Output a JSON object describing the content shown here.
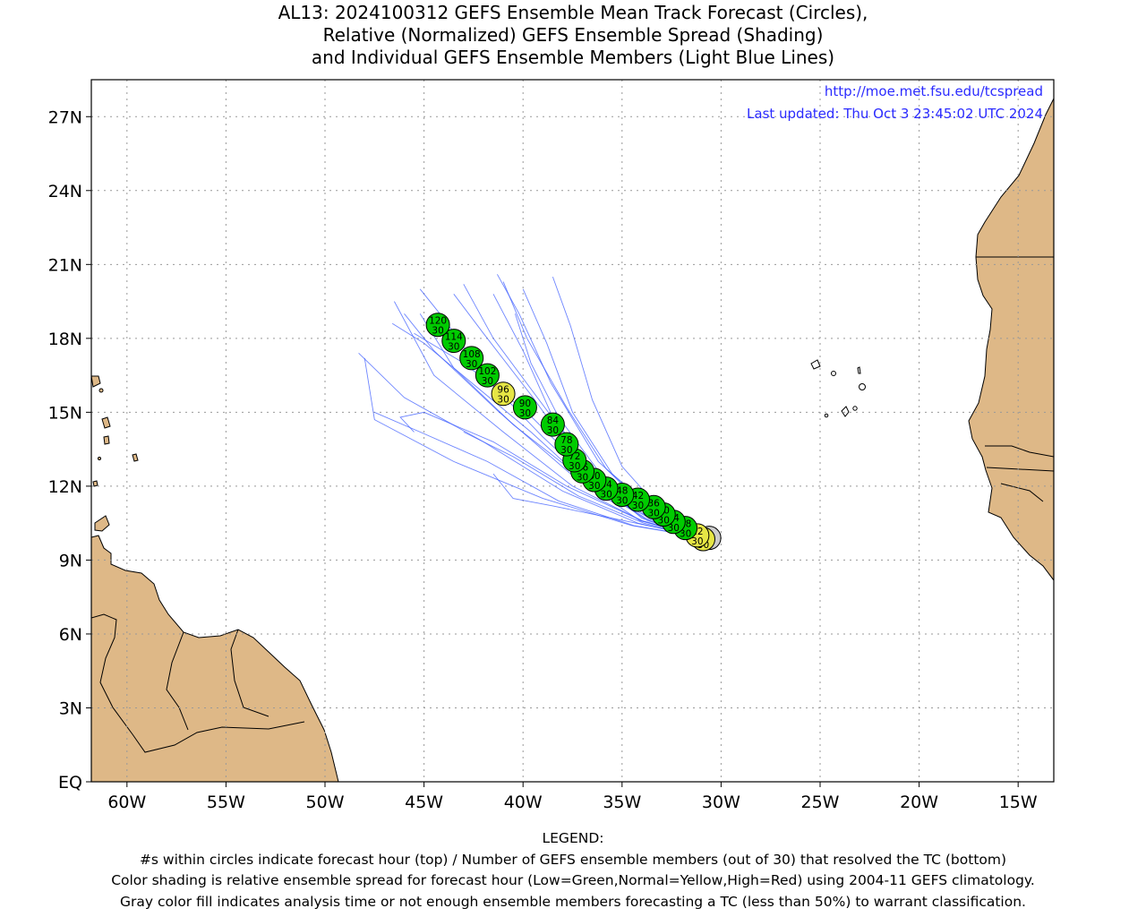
{
  "title": {
    "line1": "AL13: 2024100312 GEFS Ensemble Mean Track Forecast (Circles),",
    "line2": "Relative (Normalized) GEFS Ensemble Spread (Shading)",
    "line3": "and Individual GEFS Ensemble Members (Light Blue Lines)"
  },
  "credit": {
    "url": "http://moe.met.fsu.edu/tcspread",
    "updated": "Last updated: Thu Oct 3 23:45:02 UTC 2024"
  },
  "legend": {
    "heading": "LEGEND:",
    "line1": "#s within circles indicate forecast hour (top) / Number of GEFS ensemble members (out of 30) that resolved the TC (bottom)",
    "line2": "Color shading is relative ensemble spread for forecast hour (Low=Green,Normal=Yellow,High=Red) using 2004-11 GEFS climatology.",
    "line3": "Gray color fill indicates analysis time or not enough ensemble members forecasting a TC (less than 50%) to warrant classification."
  },
  "colors": {
    "land": "#deb887",
    "green": "#00cc00",
    "yellow": "#e6e645",
    "gray": "#cccccc",
    "member_line": "#3c5cff",
    "credit_text": "#2b2bff"
  },
  "chart_data": {
    "type": "map-track",
    "projection": "longitude-latitude",
    "xlim": [
      -61.8,
      -13.2
    ],
    "ylim": [
      0,
      28.5
    ],
    "x_ticks": [
      {
        "lon": -60,
        "label": "60W"
      },
      {
        "lon": -55,
        "label": "55W"
      },
      {
        "lon": -50,
        "label": "50W"
      },
      {
        "lon": -45,
        "label": "45W"
      },
      {
        "lon": -40,
        "label": "40W"
      },
      {
        "lon": -35,
        "label": "35W"
      },
      {
        "lon": -30,
        "label": "30W"
      },
      {
        "lon": -25,
        "label": "25W"
      },
      {
        "lon": -20,
        "label": "20W"
      },
      {
        "lon": -15,
        "label": "15W"
      }
    ],
    "y_ticks": [
      {
        "lat": 0,
        "label": "EQ"
      },
      {
        "lat": 3,
        "label": "3N"
      },
      {
        "lat": 6,
        "label": "6N"
      },
      {
        "lat": 9,
        "label": "9N"
      },
      {
        "lat": 12,
        "label": "12N"
      },
      {
        "lat": 15,
        "label": "15N"
      },
      {
        "lat": 18,
        "label": "18N"
      },
      {
        "lat": 21,
        "label": "21N"
      },
      {
        "lat": 24,
        "label": "24N"
      },
      {
        "lat": 27,
        "label": "27N"
      }
    ],
    "grid": true,
    "mean_track": [
      {
        "hour": "0",
        "members": "",
        "lon": -30.6,
        "lat": 9.9,
        "spread": "gray"
      },
      {
        "hour": "6",
        "members": "30",
        "lon": -30.9,
        "lat": 9.85,
        "spread": "yellow"
      },
      {
        "hour": "12",
        "members": "30",
        "lon": -31.2,
        "lat": 10.0,
        "spread": "yellow"
      },
      {
        "hour": "18",
        "members": "30",
        "lon": -31.8,
        "lat": 10.3,
        "spread": "green"
      },
      {
        "hour": "24",
        "members": "30",
        "lon": -32.4,
        "lat": 10.55,
        "spread": "green"
      },
      {
        "hour": "30",
        "members": "30",
        "lon": -32.9,
        "lat": 10.85,
        "spread": "green"
      },
      {
        "hour": "36",
        "members": "30",
        "lon": -33.4,
        "lat": 11.15,
        "spread": "green"
      },
      {
        "hour": "42",
        "members": "30",
        "lon": -34.2,
        "lat": 11.45,
        "spread": "green"
      },
      {
        "hour": "48",
        "members": "30",
        "lon": -35.0,
        "lat": 11.65,
        "spread": "green"
      },
      {
        "hour": "54",
        "members": "30",
        "lon": -35.8,
        "lat": 11.9,
        "spread": "green"
      },
      {
        "hour": "60",
        "members": "30",
        "lon": -36.4,
        "lat": 12.25,
        "spread": "green"
      },
      {
        "hour": "66",
        "members": "30",
        "lon": -37.0,
        "lat": 12.6,
        "spread": "green"
      },
      {
        "hour": "72",
        "members": "30",
        "lon": -37.4,
        "lat": 13.05,
        "spread": "green"
      },
      {
        "hour": "78",
        "members": "30",
        "lon": -37.8,
        "lat": 13.7,
        "spread": "green"
      },
      {
        "hour": "84",
        "members": "30",
        "lon": -38.5,
        "lat": 14.5,
        "spread": "green"
      },
      {
        "hour": "90",
        "members": "30",
        "lon": -39.9,
        "lat": 15.2,
        "spread": "green"
      },
      {
        "hour": "96",
        "members": "30",
        "lon": -41.0,
        "lat": 15.75,
        "spread": "yellow"
      },
      {
        "hour": "102",
        "members": "30",
        "lon": -41.8,
        "lat": 16.5,
        "spread": "green"
      },
      {
        "hour": "108",
        "members": "30",
        "lon": -42.6,
        "lat": 17.2,
        "spread": "green"
      },
      {
        "hour": "114",
        "members": "30",
        "lon": -43.5,
        "lat": 17.9,
        "spread": "green"
      },
      {
        "hour": "120",
        "members": "30",
        "lon": -44.3,
        "lat": 18.55,
        "spread": "green"
      }
    ],
    "member_tracks": [
      [
        [
          -30.8,
          9.9
        ],
        [
          -34.0,
          10.6
        ],
        [
          -37.5,
          12.0
        ],
        [
          -41.0,
          14.2
        ],
        [
          -44.5,
          16.5
        ],
        [
          -46.5,
          19.5
        ]
      ],
      [
        [
          -30.8,
          9.9
        ],
        [
          -33.8,
          10.7
        ],
        [
          -37.0,
          12.3
        ],
        [
          -40.5,
          14.5
        ],
        [
          -43.5,
          16.8
        ],
        [
          -45.2,
          19.0
        ]
      ],
      [
        [
          -30.8,
          9.9
        ],
        [
          -34.2,
          10.5
        ],
        [
          -38.0,
          11.8
        ],
        [
          -42.0,
          13.8
        ],
        [
          -46.0,
          15.6
        ],
        [
          -48.3,
          17.4
        ]
      ],
      [
        [
          -30.8,
          9.9
        ],
        [
          -34.5,
          10.4
        ],
        [
          -39.0,
          11.5
        ],
        [
          -43.5,
          13.0
        ],
        [
          -47.5,
          14.7
        ],
        [
          -48.0,
          17.2
        ]
      ],
      [
        [
          -30.8,
          9.9
        ],
        [
          -33.5,
          10.8
        ],
        [
          -36.0,
          12.2
        ],
        [
          -38.5,
          14.8
        ],
        [
          -40.0,
          17.5
        ],
        [
          -41.5,
          19.8
        ]
      ],
      [
        [
          -30.8,
          9.9
        ],
        [
          -33.6,
          10.9
        ],
        [
          -36.5,
          12.6
        ],
        [
          -39.0,
          15.3
        ],
        [
          -41.5,
          18.0
        ],
        [
          -43.0,
          20.2
        ]
      ],
      [
        [
          -30.8,
          9.9
        ],
        [
          -33.2,
          10.9
        ],
        [
          -35.5,
          12.5
        ],
        [
          -37.5,
          15.0
        ],
        [
          -38.8,
          17.8
        ],
        [
          -40.0,
          20.0
        ]
      ],
      [
        [
          -30.8,
          9.9
        ],
        [
          -33.0,
          11.0
        ],
        [
          -35.0,
          12.8
        ],
        [
          -36.5,
          15.5
        ],
        [
          -37.6,
          18.5
        ],
        [
          -38.5,
          20.5
        ]
      ],
      [
        [
          -30.8,
          9.9
        ],
        [
          -34.0,
          10.6
        ],
        [
          -37.8,
          12.0
        ],
        [
          -41.5,
          13.8
        ],
        [
          -45.0,
          15.0
        ],
        [
          -46.2,
          14.8
        ],
        [
          -45.5,
          14.2
        ]
      ],
      [
        [
          -30.8,
          9.9
        ],
        [
          -34.3,
          10.5
        ],
        [
          -38.5,
          11.2
        ],
        [
          -40.5,
          11.5
        ],
        [
          -41.5,
          12.5
        ]
      ],
      [
        [
          -30.8,
          9.9
        ],
        [
          -33.7,
          10.6
        ],
        [
          -36.2,
          11.9
        ],
        [
          -39.0,
          14.0
        ],
        [
          -42.0,
          16.5
        ],
        [
          -44.0,
          18.8
        ],
        [
          -45.2,
          20.0
        ]
      ],
      [
        [
          -30.8,
          9.9
        ],
        [
          -34.0,
          10.7
        ],
        [
          -37.0,
          12.8
        ],
        [
          -39.5,
          15.6
        ],
        [
          -42.0,
          18.2
        ],
        [
          -43.5,
          19.8
        ]
      ],
      [
        [
          -30.8,
          9.9
        ],
        [
          -33.4,
          10.8
        ],
        [
          -35.8,
          12.7
        ],
        [
          -37.8,
          15.2
        ],
        [
          -39.8,
          18.0
        ],
        [
          -41.0,
          20.3
        ]
      ],
      [
        [
          -30.8,
          9.9
        ],
        [
          -34.1,
          10.6
        ],
        [
          -37.6,
          12.5
        ],
        [
          -41.2,
          15.0
        ],
        [
          -44.5,
          17.5
        ],
        [
          -46.0,
          19.0
        ]
      ],
      [
        [
          -30.8,
          9.9
        ],
        [
          -33.9,
          10.5
        ],
        [
          -37.2,
          11.6
        ],
        [
          -40.5,
          13.2
        ],
        [
          -43.0,
          14.2
        ]
      ],
      [
        [
          -30.8,
          9.9
        ],
        [
          -33.6,
          10.7
        ],
        [
          -36.6,
          12.0
        ],
        [
          -39.6,
          14.2
        ],
        [
          -42.6,
          16.2
        ],
        [
          -45.0,
          17.8
        ],
        [
          -46.6,
          18.6
        ]
      ],
      [
        [
          -30.8,
          9.9
        ],
        [
          -33.3,
          10.9
        ],
        [
          -36.2,
          13.0
        ],
        [
          -38.6,
          16.2
        ],
        [
          -40.2,
          19.0
        ],
        [
          -41.3,
          20.6
        ]
      ],
      [
        [
          -30.8,
          9.9
        ],
        [
          -33.8,
          10.8
        ],
        [
          -36.8,
          12.6
        ],
        [
          -39.8,
          15.0
        ],
        [
          -43.0,
          17.0
        ],
        [
          -45.5,
          18.2
        ]
      ],
      [
        [
          -30.8,
          9.9
        ],
        [
          -34.4,
          10.4
        ],
        [
          -38.2,
          11.4
        ],
        [
          -41.8,
          13.0
        ],
        [
          -45.2,
          14.2
        ],
        [
          -47.5,
          15.0
        ]
      ],
      [
        [
          -30.8,
          9.9
        ],
        [
          -33.5,
          10.8
        ],
        [
          -36.0,
          12.4
        ],
        [
          -38.2,
          14.8
        ],
        [
          -39.6,
          17.0
        ],
        [
          -40.4,
          19.0
        ]
      ]
    ]
  }
}
